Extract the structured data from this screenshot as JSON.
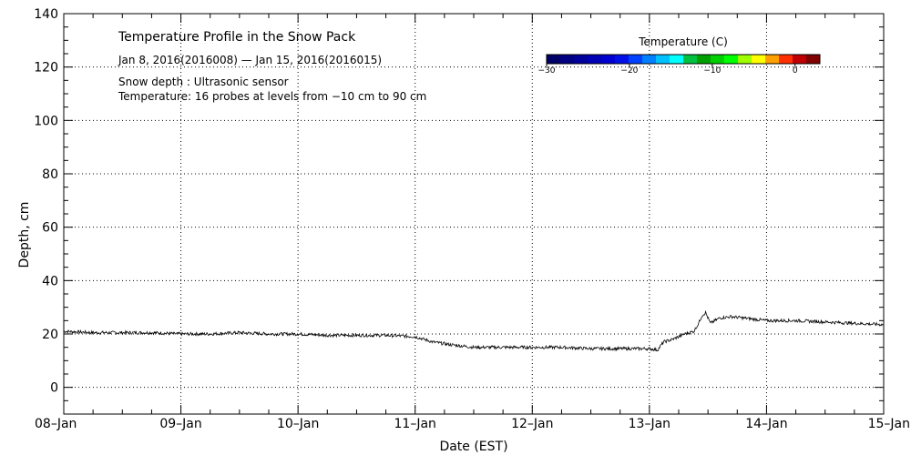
{
  "chart_data": {
    "type": "line",
    "title": "Temperature Profile in the Snow Pack",
    "subtitle": "Jan  8, 2016(2016008) — Jan 15, 2016(2016015)",
    "notes": [
      "Snow depth : Ultrasonic sensor",
      "Temperature: 16 probes at levels from −10 cm to 90 cm"
    ],
    "xlabel": "Date (EST)",
    "ylabel": "Depth, cm",
    "xlim": [
      0,
      7
    ],
    "ylim": [
      -10,
      140
    ],
    "x_ticks": [
      {
        "v": 0,
        "label": "08–Jan"
      },
      {
        "v": 1,
        "label": "09–Jan"
      },
      {
        "v": 2,
        "label": "10–Jan"
      },
      {
        "v": 3,
        "label": "11–Jan"
      },
      {
        "v": 4,
        "label": "12–Jan"
      },
      {
        "v": 5,
        "label": "13–Jan"
      },
      {
        "v": 6,
        "label": "14–Jan"
      },
      {
        "v": 7,
        "label": "15–Jan"
      }
    ],
    "y_ticks": [
      0,
      20,
      40,
      60,
      80,
      100,
      120,
      140
    ],
    "grid": true,
    "colorbar": {
      "title": "Temperature (C)",
      "range": [
        -30,
        3
      ],
      "ticks": [
        {
          "v": -30,
          "label": "−30"
        },
        {
          "v": -20,
          "label": "−20"
        },
        {
          "v": -10,
          "label": "−10"
        },
        {
          "v": 0,
          "label": "0"
        }
      ],
      "colors": [
        "#000066",
        "#000080",
        "#00009a",
        "#0000b4",
        "#0000d0",
        "#0010e6",
        "#0040ff",
        "#0080ff",
        "#00c0ff",
        "#00ffff",
        "#00c040",
        "#00a000",
        "#00d000",
        "#00ff00",
        "#a0ff00",
        "#ffff00",
        "#ffa000",
        "#ff3000",
        "#c00000",
        "#800000"
      ]
    },
    "series": [
      {
        "name": "Snow depth",
        "x": [
          0,
          0.25,
          0.5,
          0.75,
          1.0,
          1.25,
          1.5,
          1.75,
          2.0,
          2.25,
          2.5,
          2.75,
          3.0,
          3.15,
          3.3,
          3.5,
          3.75,
          4.0,
          4.25,
          4.5,
          4.75,
          5.0,
          5.07,
          5.12,
          5.2,
          5.3,
          5.38,
          5.42,
          5.45,
          5.48,
          5.52,
          5.6,
          5.7,
          5.8,
          6.0,
          6.25,
          6.5,
          6.75,
          7.0
        ],
        "values": [
          21,
          20.5,
          20.5,
          20.5,
          20,
          20,
          20.5,
          20,
          20,
          19.5,
          19.5,
          19.5,
          19,
          17,
          16,
          15,
          15,
          15,
          15,
          14.5,
          14.5,
          14.5,
          14,
          17,
          18,
          20,
          21,
          24,
          27,
          28,
          24,
          26,
          26.5,
          26,
          25,
          25,
          24.5,
          24,
          23.5
        ]
      }
    ]
  }
}
